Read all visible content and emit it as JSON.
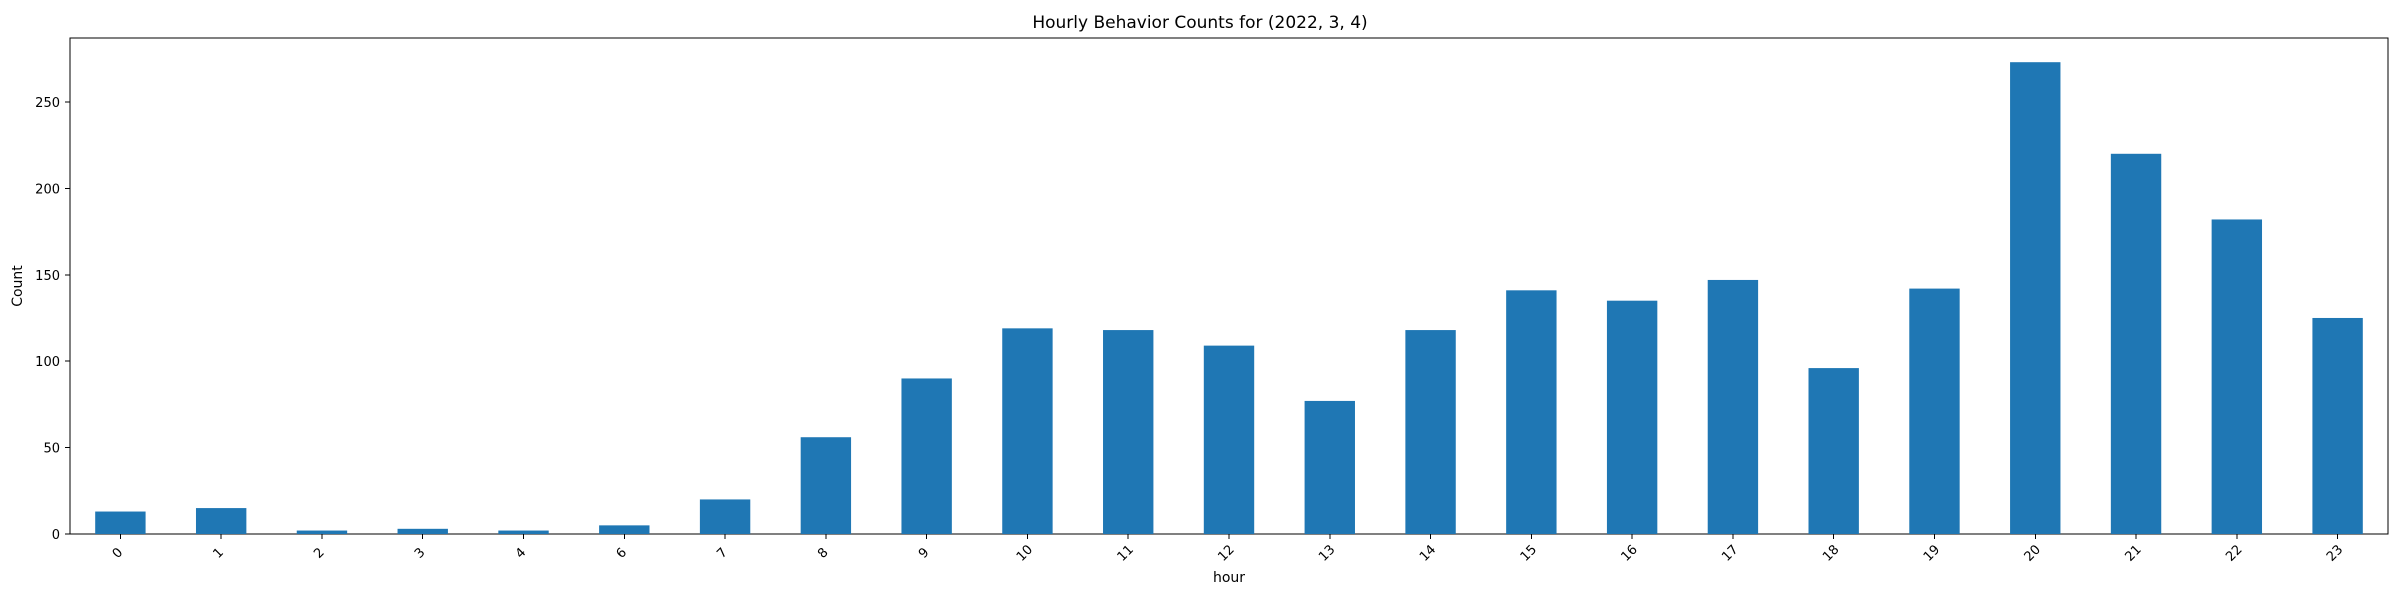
{
  "chart_data": {
    "type": "bar",
    "title": "Hourly Behavior Counts for (2022, 3, 4)",
    "xlabel": "hour",
    "ylabel": "Count",
    "categories": [
      "0",
      "1",
      "2",
      "3",
      "4",
      "6",
      "7",
      "8",
      "9",
      "10",
      "11",
      "12",
      "13",
      "14",
      "15",
      "16",
      "17",
      "18",
      "19",
      "20",
      "21",
      "22",
      "23"
    ],
    "values": [
      13,
      15,
      2,
      3,
      2,
      5,
      20,
      56,
      90,
      119,
      118,
      109,
      77,
      118,
      141,
      135,
      147,
      96,
      142,
      273,
      220,
      182,
      125
    ],
    "ylim": [
      0,
      287
    ],
    "yticks": [
      0,
      50,
      100,
      150,
      200,
      250
    ],
    "grid": false,
    "bar_color": "#1f77b4"
  }
}
